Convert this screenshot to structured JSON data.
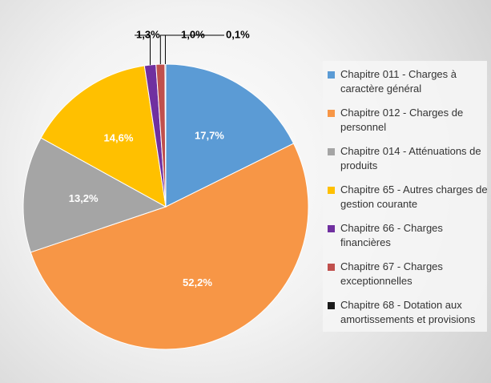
{
  "chart_data": {
    "type": "pie",
    "categories": [
      "Chapitre 011 - Charges à caractère général",
      "Chapitre 012 - Charges de personnel",
      "Chapitre 014 - Atténuations de produits",
      "Chapitre 65 - Autres charges de gestion courante",
      "Chapitre 66 - Charges financières",
      "Chapitre 67 - Charges exceptionnelles",
      "Chapitre 68 - Dotation aux amortissements et provisions"
    ],
    "values": [
      17.7,
      52.2,
      13.2,
      14.6,
      1.3,
      1.0,
      0.1
    ],
    "value_labels": [
      "17,7%",
      "52,2%",
      "13,2%",
      "14,6%",
      "1,3%",
      "1,0%",
      "0,1%"
    ],
    "colors": [
      "#5b9bd5",
      "#f79646",
      "#a5a5a5",
      "#ffc000",
      "#7030a0",
      "#c0504d",
      "#1a1a1a"
    ],
    "legend": "right"
  }
}
